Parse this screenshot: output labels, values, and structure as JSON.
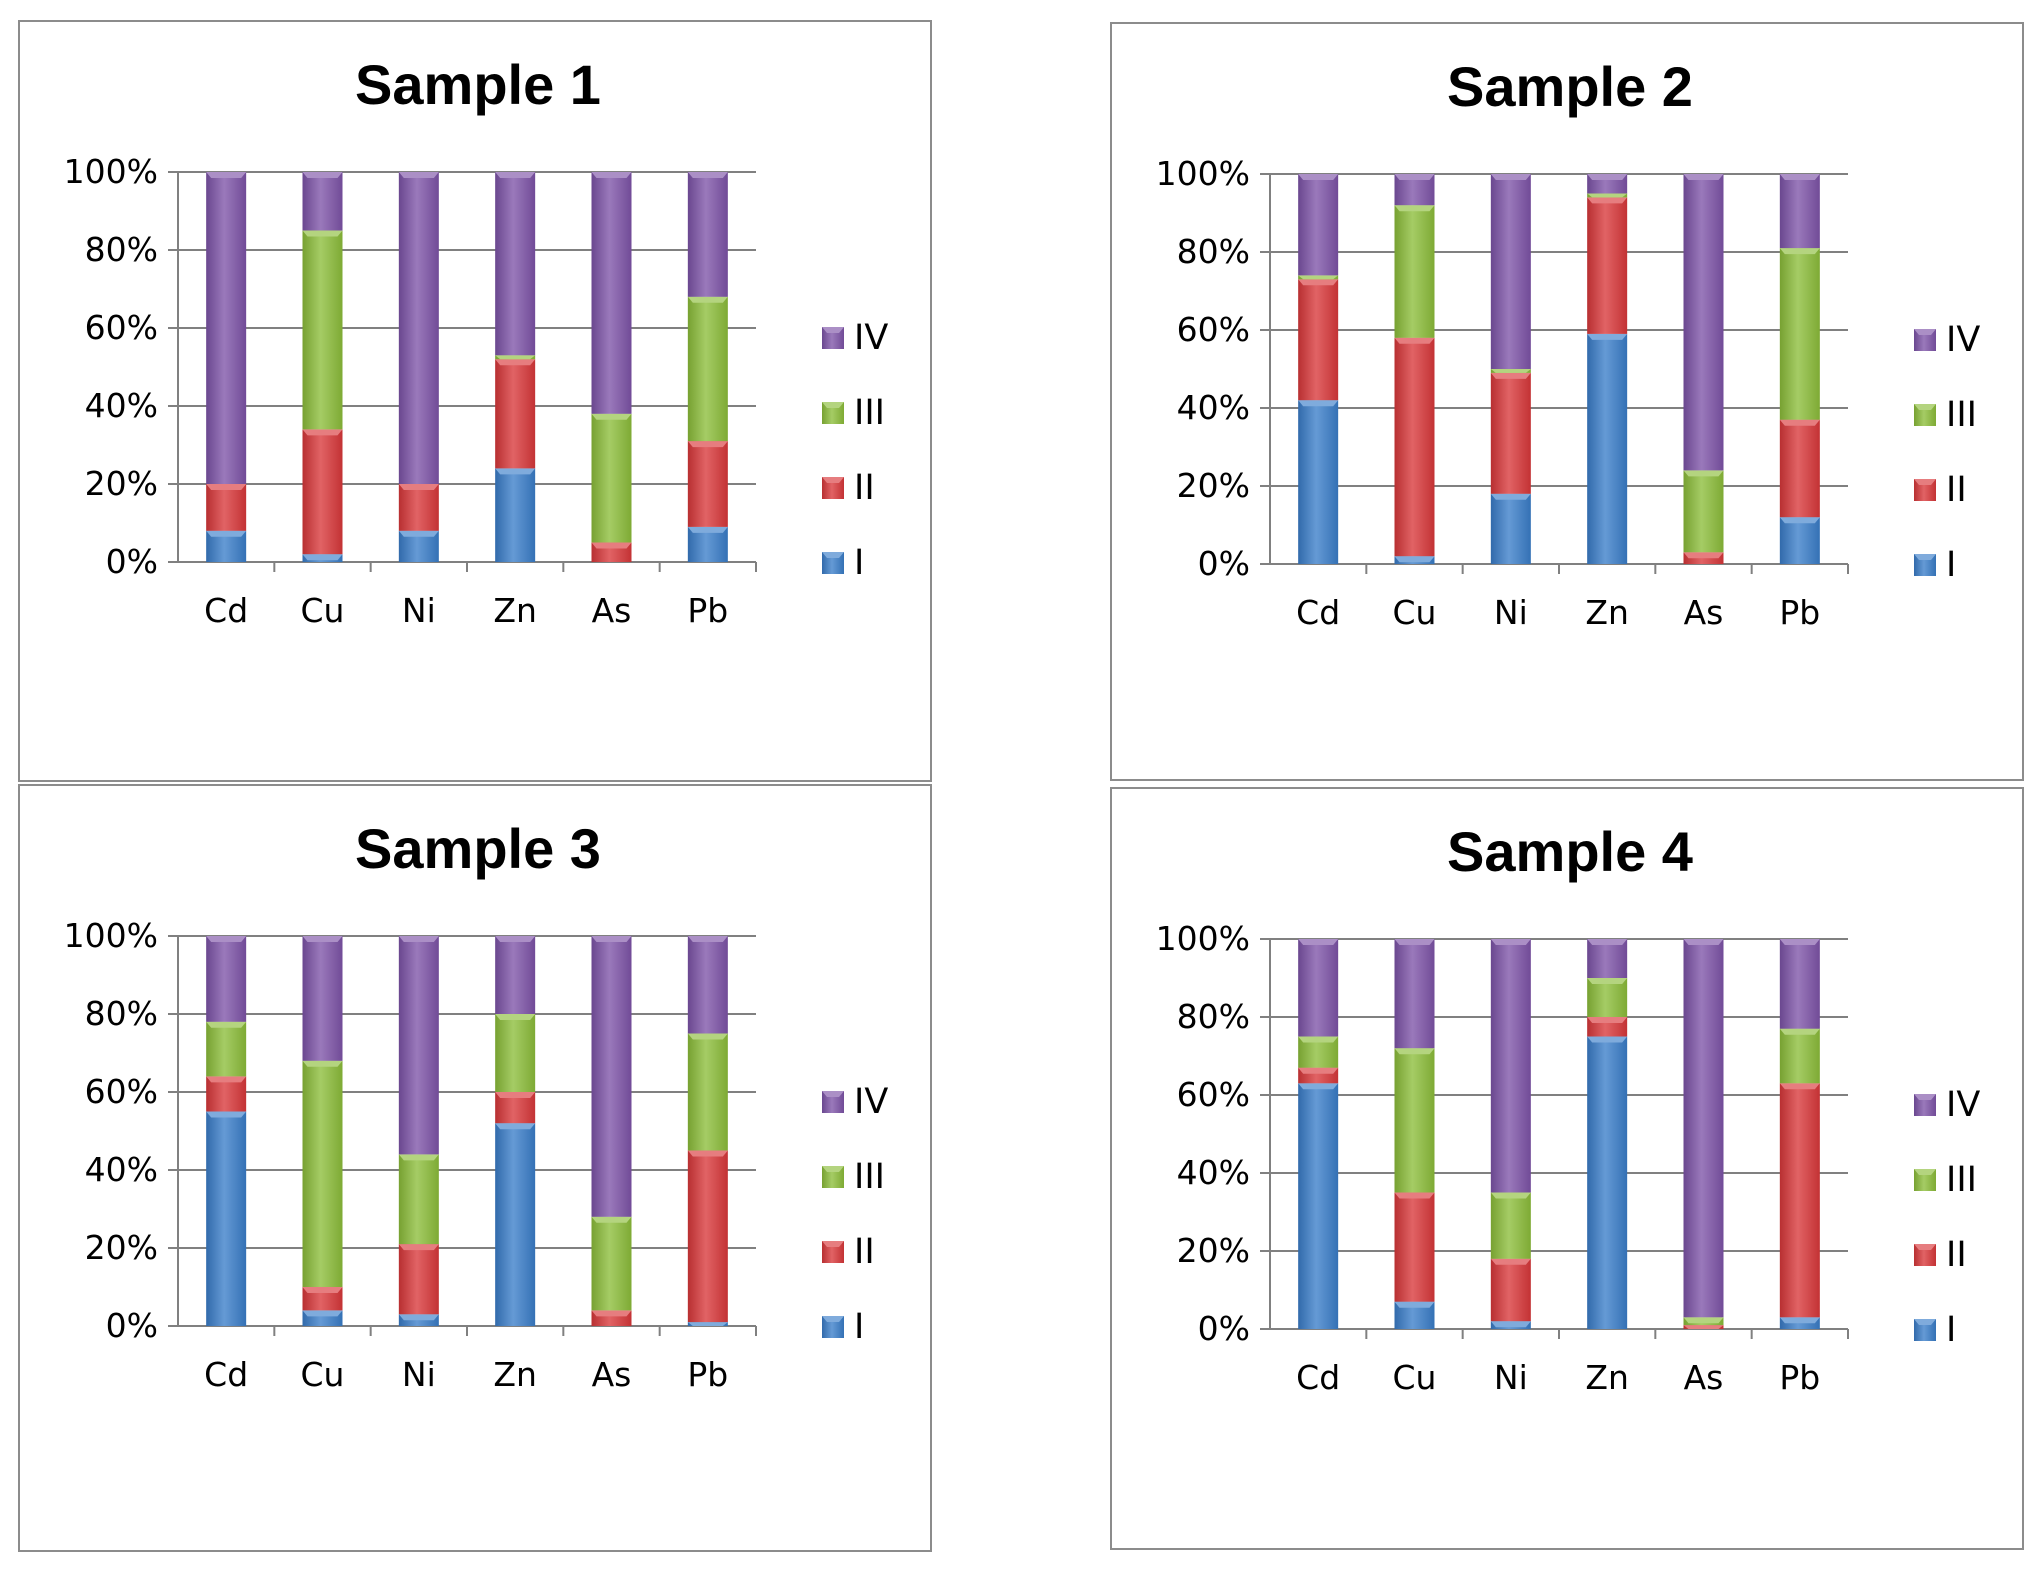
{
  "series_names": [
    "I",
    "II",
    "III",
    "IV"
  ],
  "colors": {
    "I": "#3a7dc9",
    "II": "#d9373a",
    "III": "#8cbd3a",
    "IV": "#7d53a8",
    "axis": "#808080",
    "grid": "#808080"
  },
  "chart_data": [
    {
      "type": "bar",
      "stacked": "percent",
      "title": "Sample 1",
      "categories": [
        "Cd",
        "Cu",
        "Ni",
        "Zn",
        "As",
        "Pb"
      ],
      "yticks": [
        "0%",
        "20%",
        "40%",
        "60%",
        "80%",
        "100%"
      ],
      "ylim": [
        0,
        100
      ],
      "legend": "right",
      "series": [
        {
          "name": "I",
          "values": [
            8,
            2,
            8,
            24,
            0,
            9
          ]
        },
        {
          "name": "II",
          "values": [
            12,
            32,
            12,
            28,
            5,
            22
          ]
        },
        {
          "name": "III",
          "values": [
            0,
            51,
            0,
            1,
            33,
            37
          ]
        },
        {
          "name": "IV",
          "values": [
            80,
            15,
            80,
            47,
            62,
            32
          ]
        }
      ]
    },
    {
      "type": "bar",
      "stacked": "percent",
      "title": "Sample 2",
      "categories": [
        "Cd",
        "Cu",
        "Ni",
        "Zn",
        "As",
        "Pb"
      ],
      "yticks": [
        "0%",
        "20%",
        "40%",
        "60%",
        "80%",
        "100%"
      ],
      "ylim": [
        0,
        100
      ],
      "legend": "right",
      "series": [
        {
          "name": "I",
          "values": [
            42,
            2,
            18,
            59,
            0,
            12
          ]
        },
        {
          "name": "II",
          "values": [
            31,
            56,
            31,
            35,
            3,
            25
          ]
        },
        {
          "name": "III",
          "values": [
            1,
            34,
            1,
            1,
            21,
            44
          ]
        },
        {
          "name": "IV",
          "values": [
            26,
            8,
            50,
            5,
            76,
            19
          ]
        }
      ]
    },
    {
      "type": "bar",
      "stacked": "percent",
      "title": "Sample 3",
      "categories": [
        "Cd",
        "Cu",
        "Ni",
        "Zn",
        "As",
        "Pb"
      ],
      "yticks": [
        "0%",
        "20%",
        "40%",
        "60%",
        "80%",
        "100%"
      ],
      "ylim": [
        0,
        100
      ],
      "legend": "right",
      "series": [
        {
          "name": "I",
          "values": [
            55,
            4,
            3,
            52,
            0,
            1
          ]
        },
        {
          "name": "II",
          "values": [
            9,
            6,
            18,
            8,
            4,
            44
          ]
        },
        {
          "name": "III",
          "values": [
            14,
            58,
            23,
            20,
            24,
            30
          ]
        },
        {
          "name": "IV",
          "values": [
            22,
            32,
            56,
            20,
            72,
            25
          ]
        }
      ]
    },
    {
      "type": "bar",
      "stacked": "percent",
      "title": "Sample 4",
      "categories": [
        "Cd",
        "Cu",
        "Ni",
        "Zn",
        "As",
        "Pb"
      ],
      "yticks": [
        "0%",
        "20%",
        "40%",
        "60%",
        "80%",
        "100%"
      ],
      "ylim": [
        0,
        100
      ],
      "legend": "right",
      "series": [
        {
          "name": "I",
          "values": [
            63,
            7,
            2,
            75,
            0,
            3
          ]
        },
        {
          "name": "II",
          "values": [
            4,
            28,
            16,
            5,
            1,
            60
          ]
        },
        {
          "name": "III",
          "values": [
            8,
            37,
            17,
            10,
            2,
            14
          ]
        },
        {
          "name": "IV",
          "values": [
            25,
            28,
            65,
            10,
            97,
            23
          ]
        }
      ]
    }
  ]
}
